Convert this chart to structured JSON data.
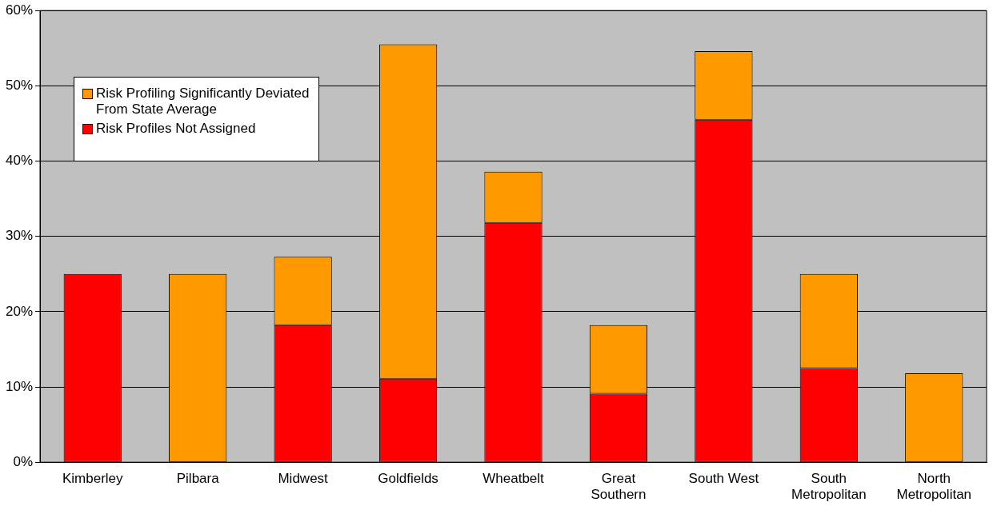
{
  "chart_data": {
    "type": "bar",
    "stacked": true,
    "categories": [
      "Kimberley",
      "Pilbara",
      "Midwest",
      "Goldfields",
      "Wheatbelt",
      "Great Southern",
      "South West",
      "South Metropolitan",
      "North Metropolitan"
    ],
    "series": [
      {
        "name": "Risk Profiles Not Assigned",
        "color": "#ff0000",
        "values": [
          25,
          null,
          18.2,
          11.1,
          31.8,
          9.1,
          45.5,
          12.5,
          null
        ]
      },
      {
        "name": "Risk Profiling Significantly Deviated From State Average",
        "color": "#ff9900",
        "values": [
          null,
          25,
          9.1,
          44.4,
          6.8,
          9.1,
          9.1,
          12.5,
          11.8
        ]
      }
    ],
    "ylim": [
      0,
      60
    ],
    "yticks": [
      {
        "value": 0,
        "label": "0%"
      },
      {
        "value": 10,
        "label": "10%"
      },
      {
        "value": 20,
        "label": "20%"
      },
      {
        "value": 30,
        "label": "30%"
      },
      {
        "value": 40,
        "label": "40%"
      },
      {
        "value": 50,
        "label": "50%"
      },
      {
        "value": 60,
        "label": "60%"
      }
    ],
    "grid": "y",
    "legend": "top left"
  }
}
